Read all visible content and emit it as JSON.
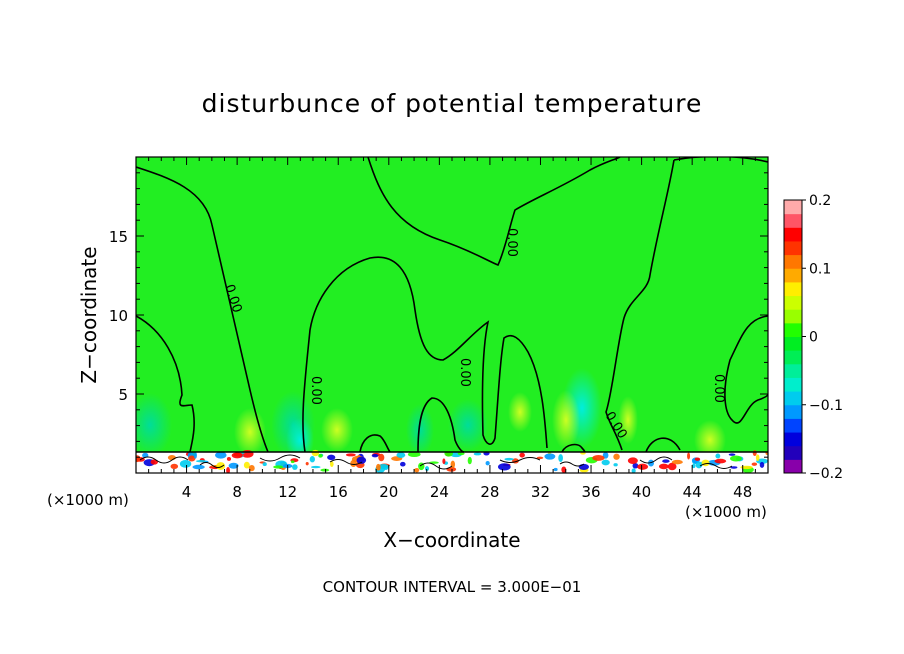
{
  "chart_data": {
    "type": "heatmap",
    "title": "disturbunce of potential temperature",
    "xlabel": "X−coordinate",
    "ylabel": "Z−coordinate",
    "x_unit_left": "(×1000 m)",
    "x_unit_right": "(×1000 m)",
    "xlim": [
      0,
      50
    ],
    "ylim": [
      0,
      20
    ],
    "x_ticks": [
      4,
      8,
      12,
      16,
      20,
      24,
      28,
      32,
      36,
      40,
      44,
      48
    ],
    "y_ticks": [
      5,
      10,
      15
    ],
    "contour_interval_text": "CONTOUR INTERVAL = 3.000E−01",
    "contour_label": "0.00",
    "colorbar": {
      "range": [
        -0.2,
        0.2
      ],
      "tick_labels": [
        {
          "value": 0.2,
          "label": "0.2"
        },
        {
          "value": 0.1,
          "label": "0.1"
        },
        {
          "value": 0,
          "label": "0"
        },
        {
          "value": -0.1,
          "label": "−0.1"
        },
        {
          "value": -0.2,
          "label": "−0.2"
        }
      ],
      "colors": [
        "#8800aa",
        "#2200bb",
        "#0000dd",
        "#0044ff",
        "#0099ff",
        "#00ccee",
        "#00eecc",
        "#00ee99",
        "#00ee55",
        "#00ee22",
        "#22ff00",
        "#99ff00",
        "#ccff00",
        "#ffee00",
        "#ffaa00",
        "#ff7700",
        "#ff3300",
        "#ff0000",
        "#ff5566",
        "#ffaaaa"
      ]
    },
    "background_color": "#22ee22",
    "warm_anomaly_color": "#aaff33",
    "cool_anomaly_color": "#33dd88"
  }
}
